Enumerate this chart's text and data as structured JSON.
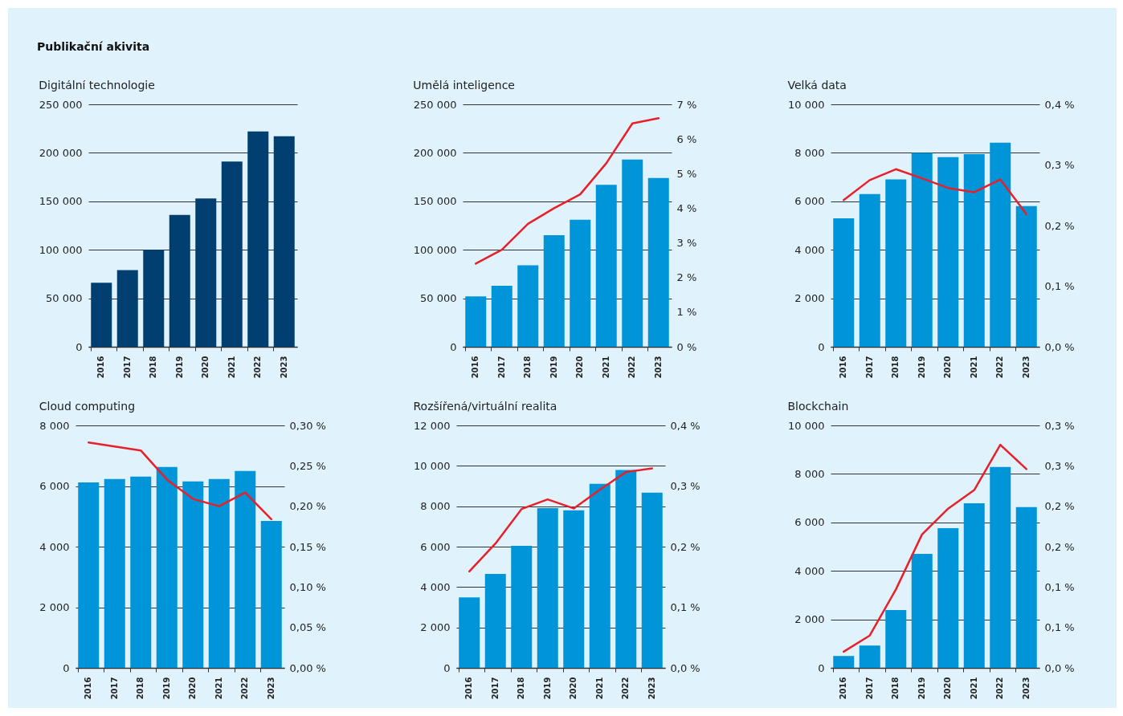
{
  "chart_data": [
    {
      "type": "bar",
      "title": "Digitální technologie",
      "annotations": [
        "Publikační akivita"
      ],
      "categories": [
        "2016",
        "2017",
        "2018",
        "2019",
        "2020",
        "2021",
        "2022",
        "2023"
      ],
      "grid": "y",
      "series": [
        {
          "color": "#003f6f",
          "values": [
            66000,
            79000,
            100000,
            136000,
            153000,
            191000,
            222000,
            217000
          ]
        }
      ],
      "ylim": [
        0,
        250000
      ],
      "yticks": [
        {
          "value": 0,
          "label": "0"
        },
        {
          "value": 50000,
          "label": "50 000"
        },
        {
          "value": 100000,
          "label": "100 000"
        },
        {
          "value": 150000,
          "label": "150 000"
        },
        {
          "value": 200000,
          "label": "200 000"
        },
        {
          "value": 250000,
          "label": "250 000"
        }
      ]
    },
    {
      "type": "bar",
      "title": "Umělá inteligence",
      "categories": [
        "2016",
        "2017",
        "2018",
        "2019",
        "2020",
        "2021",
        "2022",
        "2023"
      ],
      "grid": "y",
      "series": [
        {
          "color": "#0095d8",
          "values": [
            52000,
            63000,
            84000,
            115000,
            131000,
            167000,
            193000,
            174000
          ]
        },
        {
          "type": "line",
          "axis": "y2",
          "color": "#e8202a",
          "values": [
            2.4,
            2.8,
            3.55,
            4.0,
            4.4,
            5.3,
            6.45,
            6.6
          ]
        }
      ],
      "ylim": [
        0,
        250000
      ],
      "yticks": [
        {
          "value": 0,
          "label": "0"
        },
        {
          "value": 50000,
          "label": "50 000"
        },
        {
          "value": 100000,
          "label": "100 000"
        },
        {
          "value": 150000,
          "label": "150 000"
        },
        {
          "value": 200000,
          "label": "200 000"
        },
        {
          "value": 250000,
          "label": "250 000"
        }
      ],
      "y2lim": [
        0,
        7
      ],
      "y2ticks": [
        {
          "value": 0,
          "label": "0 %"
        },
        {
          "value": 1,
          "label": "1 %"
        },
        {
          "value": 2,
          "label": "2 %"
        },
        {
          "value": 3,
          "label": "3 %"
        },
        {
          "value": 4,
          "label": "4 %"
        },
        {
          "value": 5,
          "label": "5 %"
        },
        {
          "value": 6,
          "label": "6 %"
        },
        {
          "value": 7,
          "label": "7 %"
        }
      ]
    },
    {
      "type": "bar",
      "title": "Velká data",
      "categories": [
        "2016",
        "2017",
        "2018",
        "2019",
        "2020",
        "2021",
        "2022",
        "2023"
      ],
      "grid": "y",
      "series": [
        {
          "color": "#0095d8",
          "values": [
            5300,
            6300,
            6900,
            8000,
            7820,
            7950,
            8420,
            5800
          ]
        },
        {
          "type": "line",
          "axis": "y2",
          "color": "#e8202a",
          "values": [
            0.242,
            0.275,
            0.293,
            0.278,
            0.262,
            0.255,
            0.276,
            0.219
          ]
        }
      ],
      "ylim": [
        0,
        10000
      ],
      "yticks": [
        {
          "value": 0,
          "label": "0"
        },
        {
          "value": 2000,
          "label": "2 000"
        },
        {
          "value": 4000,
          "label": "4 000"
        },
        {
          "value": 6000,
          "label": "6 000"
        },
        {
          "value": 8000,
          "label": "8 000"
        },
        {
          "value": 10000,
          "label": "10 000"
        }
      ],
      "y2lim": [
        0,
        0.4
      ],
      "y2ticks": [
        {
          "value": 0,
          "label": "0,0 %"
        },
        {
          "value": 0.1,
          "label": "0,1 %"
        },
        {
          "value": 0.2,
          "label": "0,2 %"
        },
        {
          "value": 0.3,
          "label": "0,3 %"
        },
        {
          "value": 0.4,
          "label": "0,4 %"
        }
      ]
    },
    {
      "type": "bar",
      "title": "Cloud computing",
      "categories": [
        "2016",
        "2017",
        "2018",
        "2019",
        "2020",
        "2021",
        "2022",
        "2023"
      ],
      "grid": "y",
      "series": [
        {
          "color": "#0095d8",
          "values": [
            6120,
            6230,
            6310,
            6630,
            6150,
            6230,
            6500,
            4850
          ]
        },
        {
          "type": "line",
          "axis": "y2",
          "color": "#e8202a",
          "values": [
            0.279,
            0.274,
            0.269,
            0.233,
            0.209,
            0.2,
            0.217,
            0.184
          ]
        }
      ],
      "ylim": [
        0,
        8000
      ],
      "yticks": [
        {
          "value": 0,
          "label": "0"
        },
        {
          "value": 2000,
          "label": "2 000"
        },
        {
          "value": 4000,
          "label": "4 000"
        },
        {
          "value": 6000,
          "label": "6 000"
        },
        {
          "value": 8000,
          "label": "8 000"
        }
      ],
      "y2lim": [
        0,
        0.3
      ],
      "y2ticks": [
        {
          "value": 0,
          "label": "0,00 %"
        },
        {
          "value": 0.05,
          "label": "0,05 %"
        },
        {
          "value": 0.1,
          "label": "0,10 %"
        },
        {
          "value": 0.15,
          "label": "0,15 %"
        },
        {
          "value": 0.2,
          "label": "0,20 %"
        },
        {
          "value": 0.25,
          "label": "0,25 %"
        },
        {
          "value": 0.3,
          "label": "0,30 %"
        }
      ]
    },
    {
      "type": "bar",
      "title": "Rozšířená/virtuální realita",
      "categories": [
        "2016",
        "2017",
        "2018",
        "2019",
        "2020",
        "2021",
        "2022",
        "2023"
      ],
      "grid": "y",
      "series": [
        {
          "color": "#0095d8",
          "values": [
            3490,
            4650,
            6040,
            7910,
            7800,
            9110,
            9790,
            8670
          ]
        },
        {
          "type": "line",
          "axis": "y2",
          "color": "#e8202a",
          "values": [
            0.159,
            0.205,
            0.262,
            0.278,
            0.263,
            0.294,
            0.323,
            0.329
          ]
        }
      ],
      "ylim": [
        0,
        12000
      ],
      "yticks": [
        {
          "value": 0,
          "label": "0"
        },
        {
          "value": 2000,
          "label": "2 000"
        },
        {
          "value": 4000,
          "label": "4 000"
        },
        {
          "value": 6000,
          "label": "6 000"
        },
        {
          "value": 8000,
          "label": "8 000"
        },
        {
          "value": 10000,
          "label": "10 000"
        },
        {
          "value": 12000,
          "label": "12 000"
        }
      ],
      "y2lim": [
        0,
        0.4
      ],
      "y2ticks": [
        {
          "value": 0,
          "label": "0,0 %"
        },
        {
          "value": 0.1,
          "label": "0,1 %"
        },
        {
          "value": 0.2,
          "label": "0,2 %"
        },
        {
          "value": 0.3,
          "label": "0,3 %"
        },
        {
          "value": 0.4,
          "label": "0,4 %"
        }
      ]
    },
    {
      "type": "bar",
      "title": "Blockchain",
      "categories": [
        "2016",
        "2017",
        "2018",
        "2019",
        "2020",
        "2021",
        "2022",
        "2023"
      ],
      "grid": "y",
      "series": [
        {
          "color": "#0095d8",
          "values": [
            490,
            920,
            2380,
            4700,
            5760,
            6790,
            8290,
            6630
          ]
        },
        {
          "type": "line",
          "axis": "y2",
          "color": "#e8202a",
          "values": [
            0.02,
            0.04,
            0.097,
            0.165,
            0.197,
            0.22,
            0.276,
            0.246
          ]
        }
      ],
      "ylim": [
        0,
        10000
      ],
      "yticks": [
        {
          "value": 0,
          "label": "0"
        },
        {
          "value": 2000,
          "label": "2 000"
        },
        {
          "value": 4000,
          "label": "4 000"
        },
        {
          "value": 6000,
          "label": "6 000"
        },
        {
          "value": 8000,
          "label": "8 000"
        },
        {
          "value": 10000,
          "label": "10 000"
        }
      ],
      "y2lim": [
        0,
        0.3
      ],
      "y2ticks": [
        {
          "value": 0,
          "label": "0,0 %"
        },
        {
          "value": 0.05,
          "label": "0,1 %"
        },
        {
          "value": 0.1,
          "label": "0,1 %"
        },
        {
          "value": 0.15,
          "label": "0,2 %"
        },
        {
          "value": 0.2,
          "label": "0,2 %"
        },
        {
          "value": 0.25,
          "label": "0,3 %"
        },
        {
          "value": 0.3,
          "label": "0,3 %"
        }
      ]
    }
  ]
}
